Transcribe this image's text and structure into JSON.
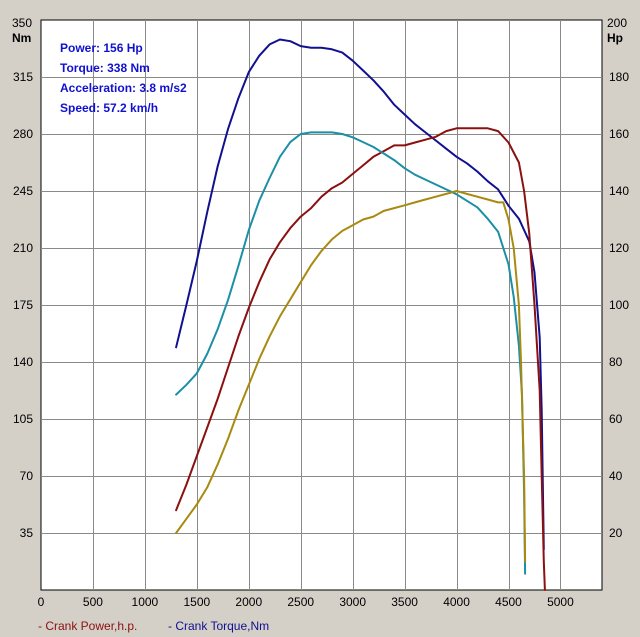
{
  "info_lines": [
    "Power: 156 Hp",
    "Torque: 338 Nm",
    "Acceleration: 3.8 m/s2",
    "Speed: 57.2 km/h"
  ],
  "legend": [
    {
      "label": "- Crank Power,h.p.",
      "color": "#8b1010"
    },
    {
      "label": "- Crank Torque,Nm",
      "color": "#101090"
    }
  ],
  "chart_data": {
    "type": "line",
    "grid": true,
    "x_ticks": [
      "0",
      "500",
      "1000",
      "1500",
      "2000",
      "2500",
      "3000",
      "3500",
      "4000",
      "4500",
      "5000"
    ],
    "xlim": [
      0,
      5400
    ],
    "y_left": {
      "unit": "Nm",
      "top_label": "350",
      "ticks": [
        "35",
        "70",
        "105",
        "140",
        "175",
        "210",
        "245",
        "280",
        "315"
      ],
      "ylim": [
        0,
        350
      ]
    },
    "y_right": {
      "unit": "Hp",
      "top_label": "200",
      "ticks": [
        "20",
        "40",
        "60",
        "80",
        "100",
        "120",
        "140",
        "160",
        "180"
      ],
      "ylim": [
        0,
        200
      ]
    },
    "series": [
      {
        "name": "Crank Torque,Nm",
        "axis": "left",
        "color": "#101090",
        "x": [
          1300,
          1400,
          1500,
          1600,
          1700,
          1800,
          1900,
          2000,
          2100,
          2200,
          2300,
          2400,
          2500,
          2600,
          2700,
          2800,
          2900,
          3000,
          3100,
          3200,
          3300,
          3400,
          3500,
          3600,
          3700,
          3800,
          3900,
          4000,
          4100,
          4200,
          4300,
          4400,
          4500,
          4600,
          4700,
          4750,
          4800,
          4820,
          4840
        ],
        "y": [
          149,
          175,
          202,
          232,
          260,
          283,
          302,
          318,
          328,
          335,
          338,
          337,
          334,
          333,
          333,
          332,
          330,
          325,
          319,
          313,
          306,
          298,
          292,
          286,
          281,
          276,
          271,
          266,
          262,
          257,
          251,
          246,
          236,
          228,
          214,
          195,
          155,
          110,
          25
        ]
      },
      {
        "name": "Crank Power,h.p.",
        "axis": "right",
        "color": "#8b1010",
        "x": [
          1300,
          1400,
          1500,
          1600,
          1700,
          1800,
          1900,
          2000,
          2100,
          2200,
          2300,
          2400,
          2500,
          2600,
          2700,
          2800,
          2900,
          3000,
          3100,
          3200,
          3300,
          3400,
          3500,
          3600,
          3700,
          3800,
          3900,
          4000,
          4100,
          4200,
          4300,
          4400,
          4500,
          4600,
          4650,
          4700,
          4750,
          4800,
          4820,
          4840,
          4850
        ],
        "y": [
          28,
          37,
          47,
          57,
          67,
          78,
          89,
          99,
          108,
          116,
          122,
          127,
          131,
          134,
          138,
          141,
          143,
          146,
          149,
          152,
          154,
          156,
          156,
          157,
          158,
          159,
          161,
          162,
          162,
          162,
          162,
          161,
          157,
          150,
          140,
          125,
          100,
          70,
          40,
          10,
          0
        ]
      },
      {
        "name": "",
        "axis": "left",
        "color": "#1b8fa6",
        "x": [
          1300,
          1400,
          1500,
          1600,
          1700,
          1800,
          1900,
          2000,
          2100,
          2200,
          2300,
          2400,
          2500,
          2600,
          2700,
          2800,
          2900,
          3000,
          3100,
          3200,
          3300,
          3400,
          3500,
          3600,
          3700,
          3800,
          3900,
          4000,
          4100,
          4200,
          4300,
          4400,
          4500,
          4550,
          4600,
          4630,
          4650,
          4660
        ],
        "y": [
          120,
          126,
          133,
          145,
          160,
          178,
          199,
          221,
          239,
          253,
          266,
          275,
          280,
          281,
          281,
          281,
          280,
          278,
          275,
          272,
          268,
          264,
          259,
          255,
          252,
          249,
          246,
          243,
          239,
          235,
          228,
          220,
          200,
          180,
          150,
          120,
          60,
          10
        ]
      },
      {
        "name": "",
        "axis": "right",
        "color": "#a88a10",
        "x": [
          1300,
          1400,
          1500,
          1600,
          1700,
          1800,
          1900,
          2000,
          2100,
          2200,
          2300,
          2400,
          2500,
          2600,
          2700,
          2800,
          2900,
          3000,
          3100,
          3200,
          3300,
          3400,
          3500,
          3600,
          3700,
          3800,
          3900,
          4000,
          4100,
          4200,
          4300,
          4400,
          4450,
          4500,
          4550,
          4600,
          4620,
          4650,
          4660
        ],
        "y": [
          20,
          25,
          30,
          36,
          44,
          53,
          63,
          72,
          81,
          89,
          96,
          102,
          108,
          114,
          119,
          123,
          126,
          128,
          130,
          131,
          133,
          134,
          135,
          136,
          137,
          138,
          139,
          140,
          139,
          138,
          137,
          136,
          136,
          130,
          120,
          100,
          80,
          40,
          10
        ]
      }
    ]
  }
}
